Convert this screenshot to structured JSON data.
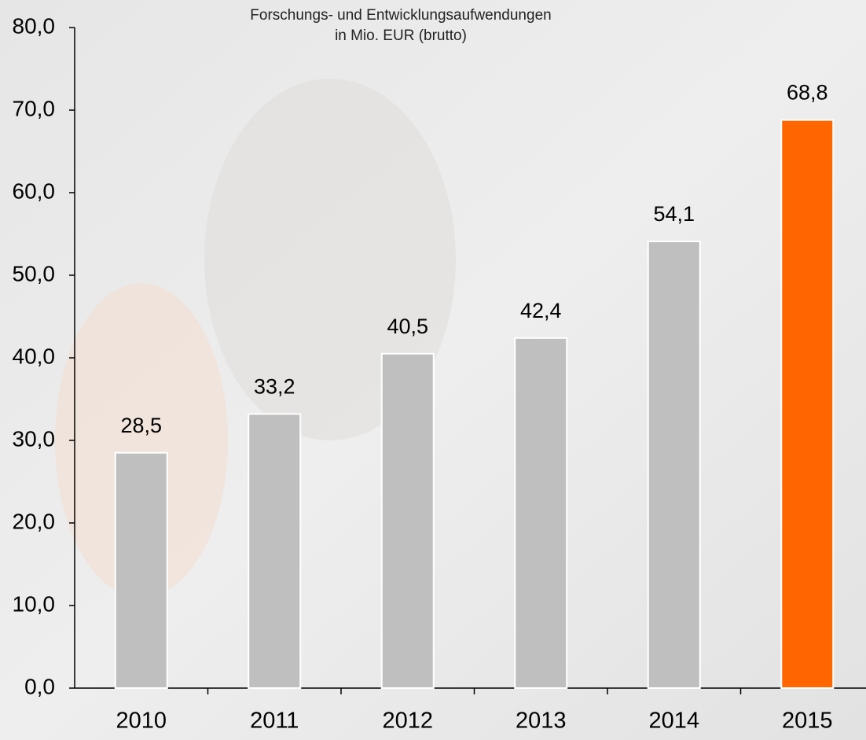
{
  "chart_data": {
    "type": "bar",
    "title": [
      "Forschungs- und Entwicklungsaufwendungen",
      "in Mio. EUR (brutto)"
    ],
    "categories": [
      "2010",
      "2011",
      "2012",
      "2013",
      "2014",
      "2015"
    ],
    "values": [
      28.5,
      33.2,
      40.5,
      42.4,
      54.1,
      68.8
    ],
    "value_labels": [
      "28,5",
      "33,2",
      "40,5",
      "42,4",
      "54,1",
      "68,8"
    ],
    "colors": [
      "#bfbfbf",
      "#bfbfbf",
      "#bfbfbf",
      "#bfbfbf",
      "#bfbfbf",
      "#ff6600"
    ],
    "ylim": [
      0,
      80
    ],
    "yticks": [
      {
        "value": 0,
        "label": "0,0"
      },
      {
        "value": 10,
        "label": "10,0"
      },
      {
        "value": 20,
        "label": "20,0"
      },
      {
        "value": 30,
        "label": "30,0"
      },
      {
        "value": 40,
        "label": "40,0"
      },
      {
        "value": 50,
        "label": "50,0"
      },
      {
        "value": 60,
        "label": "60,0"
      },
      {
        "value": 70,
        "label": "70,0"
      },
      {
        "value": 80,
        "label": "80,0"
      }
    ]
  }
}
